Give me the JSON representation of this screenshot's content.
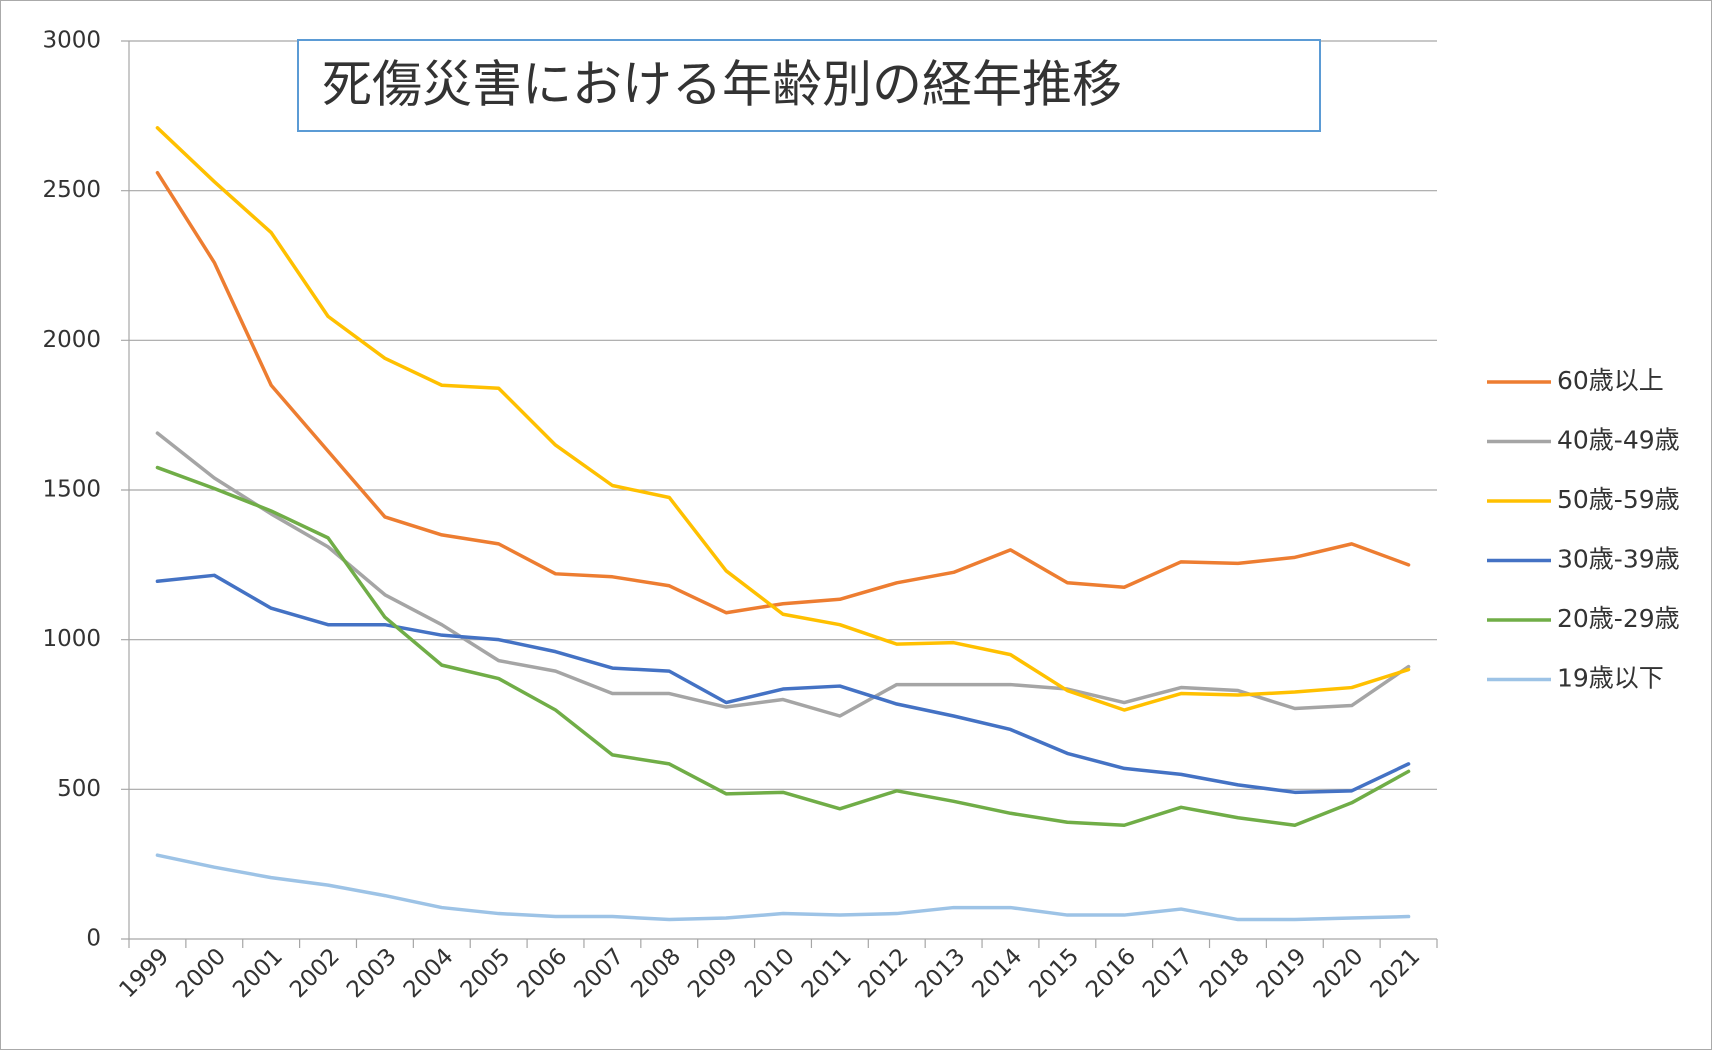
{
  "chart_data": {
    "type": "line",
    "title": "死傷災害における年齢別の経年推移",
    "categories": [
      "1999",
      "2000",
      "2001",
      "2002",
      "2003",
      "2004",
      "2005",
      "2006",
      "2007",
      "2008",
      "2009",
      "2010",
      "2011",
      "2012",
      "2013",
      "2014",
      "2015",
      "2016",
      "2017",
      "2018",
      "2019",
      "2020",
      "2021"
    ],
    "series": [
      {
        "name": "60歳以上",
        "color": "#ED7D31",
        "values": [
          2560,
          2260,
          1850,
          1630,
          1410,
          1350,
          1320,
          1220,
          1210,
          1180,
          1090,
          1120,
          1135,
          1190,
          1225,
          1300,
          1190,
          1175,
          1260,
          1255,
          1275,
          1320,
          1250
        ]
      },
      {
        "name": "40歳-49歳",
        "color": "#A5A5A5",
        "values": [
          1690,
          1540,
          1420,
          1310,
          1150,
          1050,
          930,
          895,
          820,
          820,
          775,
          800,
          745,
          850,
          850,
          850,
          835,
          790,
          840,
          830,
          770,
          780,
          910
        ]
      },
      {
        "name": "50歳-59歳",
        "color": "#FFC000",
        "values": [
          2710,
          2530,
          2360,
          2080,
          1940,
          1850,
          1840,
          1650,
          1515,
          1475,
          1230,
          1085,
          1050,
          985,
          990,
          950,
          830,
          765,
          820,
          815,
          825,
          840,
          900
        ]
      },
      {
        "name": "30歳-39歳",
        "color": "#4472C4",
        "values": [
          1195,
          1215,
          1105,
          1050,
          1050,
          1015,
          1000,
          960,
          905,
          895,
          790,
          835,
          845,
          785,
          745,
          700,
          620,
          570,
          550,
          515,
          490,
          495,
          585
        ]
      },
      {
        "name": "20歳-29歳",
        "color": "#70AD47",
        "values": [
          1575,
          1505,
          1430,
          1340,
          1075,
          915,
          870,
          765,
          615,
          585,
          485,
          490,
          435,
          495,
          460,
          420,
          390,
          380,
          440,
          405,
          380,
          455,
          560
        ]
      },
      {
        "name": "19歳以下",
        "color": "#9DC3E6",
        "values": [
          280,
          240,
          205,
          180,
          145,
          105,
          85,
          75,
          75,
          65,
          70,
          85,
          80,
          85,
          105,
          105,
          80,
          80,
          100,
          65,
          65,
          70,
          75
        ]
      }
    ],
    "ylim": [
      0,
      3000
    ],
    "yticks": [
      0,
      500,
      1000,
      1500,
      2000,
      2500,
      3000
    ],
    "grid": true
  }
}
